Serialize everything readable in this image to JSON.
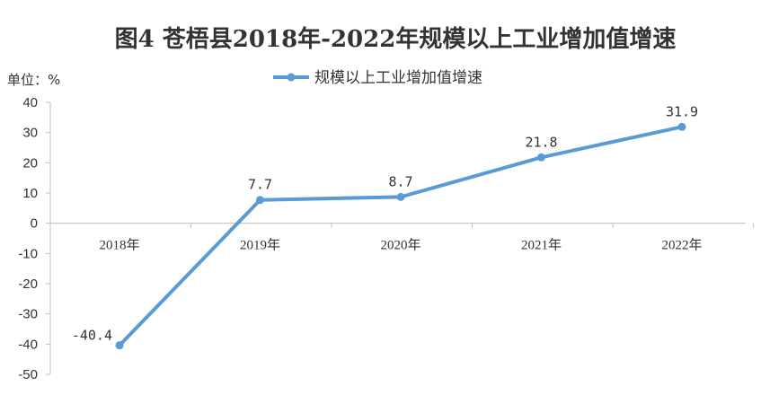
{
  "chart_data": {
    "type": "line",
    "title": "图4  苍梧县2018年-2022年规模以上工业增加值增速",
    "unit_label": "单位：%",
    "categories": [
      "2018年",
      "2019年",
      "2020年",
      "2021年",
      "2022年"
    ],
    "series": [
      {
        "name": "规模以上工业增加值增速",
        "values": [
          -40.4,
          7.7,
          8.7,
          21.8,
          31.9
        ],
        "data_labels": [
          "-40.4",
          "7.7",
          "8.7",
          "21.8",
          "31.9"
        ]
      }
    ],
    "ylim": [
      -50,
      40
    ],
    "yticks": [
      "40",
      "30",
      "20",
      "10",
      "0",
      "-10",
      "-20",
      "-30",
      "-40",
      "-50"
    ],
    "grid": false,
    "legend_position": "top-center",
    "line_color": "#5B9BD5",
    "axis_color": "#BFBFBF"
  }
}
